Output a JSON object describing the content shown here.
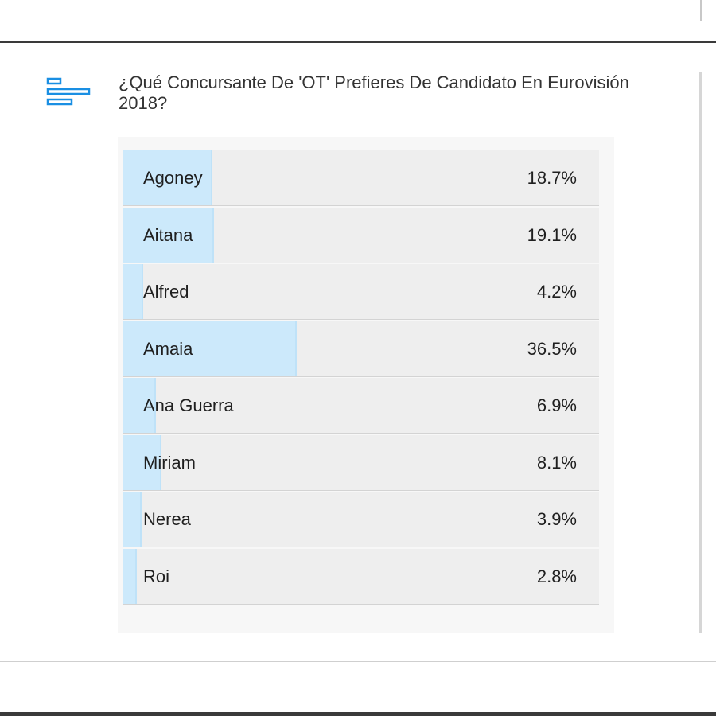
{
  "poll": {
    "title": "¿Qué Concursante De 'OT' Prefieres De Candidato En Eurovisión 2018?",
    "icon": "bar-chart-icon",
    "accent_color": "#1a8fe3",
    "fill_color": "#cce9fb"
  },
  "chart_data": {
    "type": "bar",
    "orientation": "horizontal",
    "title": "¿Qué Concursante De 'OT' Prefieres De Candidato En Eurovisión 2018?",
    "categories": [
      "Agoney",
      "Aitana",
      "Alfred",
      "Amaia",
      "Ana Guerra",
      "Miriam",
      "Nerea",
      "Roi"
    ],
    "values": [
      18.7,
      19.1,
      4.2,
      36.5,
      6.9,
      8.1,
      3.9,
      2.8
    ],
    "value_labels": [
      "18.7%",
      "19.1%",
      "4.2%",
      "36.5%",
      "6.9%",
      "8.1%",
      "3.9%",
      "2.8%"
    ],
    "xlim": [
      0,
      100
    ],
    "grid": false
  }
}
